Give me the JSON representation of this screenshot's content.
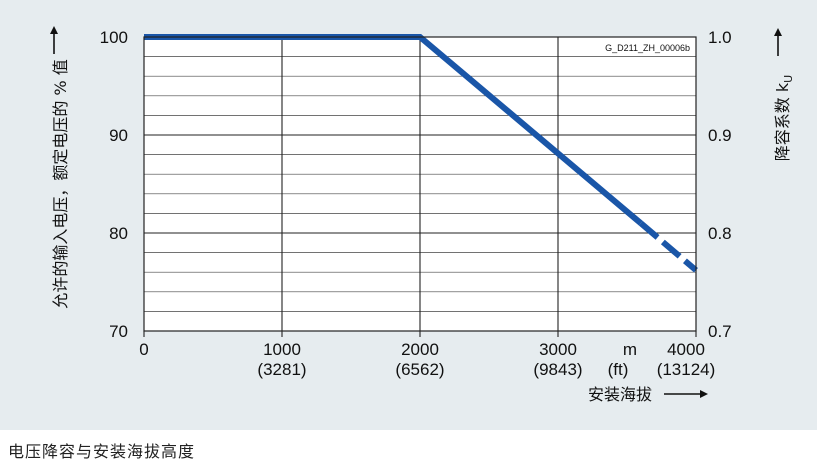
{
  "caption": "电压降容与安装海拔高度",
  "chart_data": {
    "type": "line",
    "id_label": "G_D211_ZH_00006b",
    "x_axis": {
      "label": "安装海拔",
      "unit_labels": [
        "m",
        "(ft)"
      ],
      "range": [
        0,
        4000
      ],
      "ticks": [
        0,
        1000,
        2000,
        3000,
        4000
      ],
      "tick_labels": [
        "0",
        "1000",
        "2000",
        "3000",
        "4000"
      ],
      "ft_labels": [
        "",
        "(3281)",
        "(6562)",
        "(9843)",
        "(13124)"
      ]
    },
    "y_left": {
      "label": "允许的输入电压，额定电压的 % 值",
      "range": [
        70,
        100
      ],
      "ticks": [
        70,
        80,
        90,
        100
      ],
      "tick_labels": [
        "70",
        "80",
        "90",
        "100"
      ]
    },
    "y_right": {
      "label": "降容系数 k",
      "label_subscript": "U",
      "range": [
        0.7,
        1.0
      ],
      "ticks": [
        0.7,
        0.8,
        0.9,
        1.0
      ],
      "tick_labels": [
        "0.7",
        "0.8",
        "0.9",
        "1.0"
      ]
    },
    "grid": true,
    "series": [
      {
        "color": "#1a56a8",
        "solid": [
          [
            0,
            100
          ],
          [
            2000,
            100
          ],
          [
            3600,
            81
          ]
        ],
        "dashed": [
          [
            3600,
            81
          ],
          [
            4000,
            76.2
          ]
        ]
      }
    ]
  }
}
